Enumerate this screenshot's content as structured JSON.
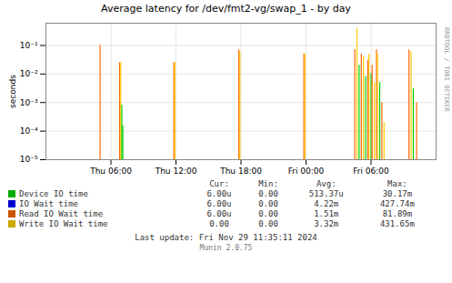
{
  "chart_data": {
    "type": "spike",
    "title": "Average latency for /dev/fmt2-vg/swap_1 - by day",
    "ylabel": "seconds",
    "log": "y",
    "grid": true,
    "legend": "bottom",
    "xlim": [
      0,
      36
    ],
    "xticks": [
      {
        "value": 6,
        "label": "Thu 06:00"
      },
      {
        "value": 12,
        "label": "Thu 12:00"
      },
      {
        "value": 18,
        "label": "Thu 18:00"
      },
      {
        "value": 24,
        "label": "Fri 00:00"
      },
      {
        "value": 30,
        "label": "Fri 06:00"
      }
    ],
    "ylim": [
      1e-05,
      0.6
    ],
    "yticks": [
      {
        "value": 1e-05,
        "label": "10⁻⁵"
      },
      {
        "value": 0.0001,
        "label": "10⁻⁴"
      },
      {
        "value": 0.001,
        "label": "10⁻³"
      },
      {
        "value": 0.01,
        "label": "10⁻²"
      },
      {
        "value": 0.1,
        "label": "10⁻¹"
      }
    ],
    "x": [
      5.0,
      5.1,
      6.8,
      6.9,
      7.0,
      7.1,
      11.8,
      11.9,
      17.8,
      17.9,
      23.8,
      23.9,
      28.5,
      28.7,
      28.9,
      29.1,
      29.3,
      29.5,
      29.7,
      29.8,
      30.0,
      30.1,
      30.3,
      30.5,
      30.6,
      30.8,
      31.0,
      31.2,
      33.5,
      33.7,
      33.9,
      34.2
    ],
    "values": [
      0.1,
      1e-05,
      0.025,
      0.025,
      0.0008,
      0.00015,
      0.025,
      0.025,
      0.07,
      0.06,
      0.05,
      0.05,
      0.07,
      0.4,
      0.02,
      0.05,
      0.04,
      0.008,
      0.03,
      0.05,
      0.01,
      0.02,
      0.005,
      0.07,
      0.05,
      0.005,
      0.001,
      0.0002,
      0.07,
      0.06,
      0.003,
      0.001
    ],
    "colors": [
      "#ff6600",
      "#ffcc00",
      "#ff6600",
      "#ffcc00",
      "#00cc00",
      "#00cc00",
      "#ff6600",
      "#ffcc00",
      "#ff6600",
      "#ffcc00",
      "#ff6600",
      "#ffcc00",
      "#ff6600",
      "#ffcc00",
      "#00cc00",
      "#ff6600",
      "#ffcc00",
      "#00cc00",
      "#ff6600",
      "#ffcc00",
      "#00cc00",
      "#ff6600",
      "#ffcc00",
      "#ff6600",
      "#ffcc00",
      "#00cc00",
      "#ff6600",
      "#ffcc00",
      "#ff6600",
      "#ffcc00",
      "#00cc00",
      "#ff6600"
    ],
    "legend_table": {
      "headers": [
        "Cur:",
        "Min:",
        "Avg:",
        "Max:"
      ],
      "rows": [
        {
          "name": "Device IO time",
          "color": "#00aa00",
          "cur": "6.00u",
          "min": "0.00",
          "avg": "513.37u",
          "max": "30.17m"
        },
        {
          "name": "IO Wait time",
          "color": "#0000cc",
          "cur": "6.00u",
          "min": "0.00",
          "avg": "4.22m",
          "max": "427.74m"
        },
        {
          "name": "Read IO Wait time",
          "color": "#cc5500",
          "cur": "6.00u",
          "min": "0.00",
          "avg": "1.51m",
          "max": "81.89m"
        },
        {
          "name": "Write IO Wait time",
          "color": "#ccaa00",
          "cur": "0.00",
          "min": "0.00",
          "avg": "3.32m",
          "max": "431.65m"
        }
      ]
    },
    "annotations": [
      "RRDTOOL / TOBI OETIKER",
      "Last update: Fri Nov 29 11:35:11 2024",
      "Munin 2.0.75"
    ]
  }
}
